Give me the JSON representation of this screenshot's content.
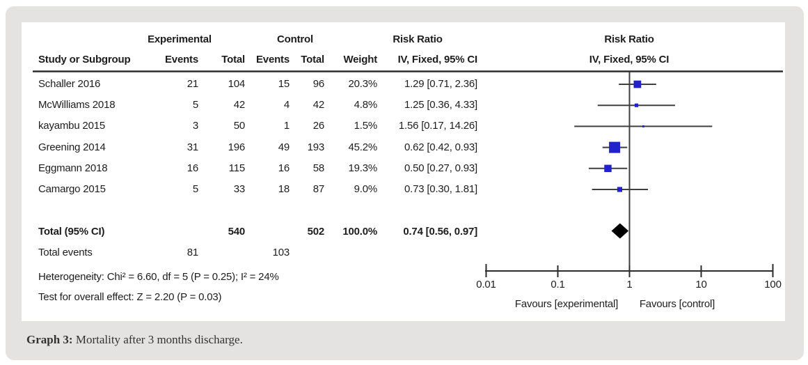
{
  "caption": {
    "label": "Graph 3:",
    "text": " Mortality after 3 months discharge."
  },
  "table": {
    "group_headers": {
      "experimental": "Experimental",
      "control": "Control",
      "risk_ratio": "Risk Ratio"
    },
    "col_headers": {
      "study": "Study or Subgroup",
      "events": "Events",
      "total": "Total",
      "weight": "Weight",
      "iv_fixed": "IV, Fixed, 95% CI"
    },
    "plot_header": {
      "line1": "Risk Ratio",
      "line2": "IV, Fixed, 95% CI"
    }
  },
  "chart_data": {
    "type": "forest",
    "effect_measure": "Risk Ratio",
    "model": "IV, Fixed, 95% CI",
    "x_axis": {
      "scale": "log",
      "ticks": [
        0.01,
        0.1,
        1,
        10,
        100
      ],
      "tick_labels": [
        "0.01",
        "0.1",
        "1",
        "10",
        "100"
      ],
      "left_label": "Favours [experimental]",
      "right_label": "Favours [control]"
    },
    "studies": [
      {
        "name": "Schaller 2016",
        "exp_events": 21,
        "exp_total": 104,
        "ctrl_events": 15,
        "ctrl_total": 96,
        "weight": "20.3%",
        "weight_value": 20.3,
        "rr": 1.29,
        "ci_low": 0.71,
        "ci_high": 2.36,
        "rr_label": "1.29 [0.71, 2.36]"
      },
      {
        "name": "McWilliams 2018",
        "exp_events": 5,
        "exp_total": 42,
        "ctrl_events": 4,
        "ctrl_total": 42,
        "weight": "4.8%",
        "weight_value": 4.8,
        "rr": 1.25,
        "ci_low": 0.36,
        "ci_high": 4.33,
        "rr_label": "1.25 [0.36, 4.33]"
      },
      {
        "name": "kayambu 2015",
        "exp_events": 3,
        "exp_total": 50,
        "ctrl_events": 1,
        "ctrl_total": 26,
        "weight": "1.5%",
        "weight_value": 1.5,
        "rr": 1.56,
        "ci_low": 0.17,
        "ci_high": 14.26,
        "rr_label": "1.56 [0.17, 14.26]"
      },
      {
        "name": "Greening 2014",
        "exp_events": 31,
        "exp_total": 196,
        "ctrl_events": 49,
        "ctrl_total": 193,
        "weight": "45.2%",
        "weight_value": 45.2,
        "rr": 0.62,
        "ci_low": 0.42,
        "ci_high": 0.93,
        "rr_label": "0.62 [0.42, 0.93]"
      },
      {
        "name": "Eggmann 2018",
        "exp_events": 16,
        "exp_total": 115,
        "ctrl_events": 16,
        "ctrl_total": 58,
        "weight": "19.3%",
        "weight_value": 19.3,
        "rr": 0.5,
        "ci_low": 0.27,
        "ci_high": 0.93,
        "rr_label": "0.50 [0.27, 0.93]"
      },
      {
        "name": "Camargo 2015",
        "exp_events": 5,
        "exp_total": 33,
        "ctrl_events": 18,
        "ctrl_total": 87,
        "weight": "9.0%",
        "weight_value": 9.0,
        "rr": 0.73,
        "ci_low": 0.3,
        "ci_high": 1.81,
        "rr_label": "0.73 [0.30, 1.81]"
      }
    ],
    "total": {
      "label": "Total (95% CI)",
      "exp_total": 540,
      "ctrl_total": 502,
      "weight": "100.0%",
      "rr": 0.74,
      "ci_low": 0.56,
      "ci_high": 0.97,
      "rr_label": "0.74 [0.56, 0.97]"
    },
    "total_events": {
      "label": "Total events",
      "exp": 81,
      "ctrl": 103
    },
    "heterogeneity": "Heterogeneity: Chi² = 6.60, df = 5 (P = 0.25); I² = 24%",
    "overall_effect": "Test for overall effect: Z = 2.20 (P = 0.03)"
  },
  "colors": {
    "marker_blue": "#2222cc",
    "diamond_black": "#000000",
    "line_dark": "#3f3f3f",
    "rule_black": "#2b2b2b",
    "text": "#1d1d1d",
    "frame_background": "#e4e3e1",
    "panel_background": "#ffffff"
  }
}
